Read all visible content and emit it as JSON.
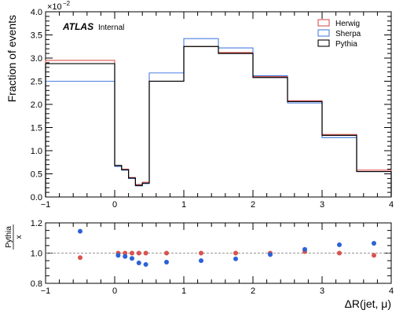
{
  "chart_data": [
    {
      "type": "line",
      "title": "",
      "xlabel": "",
      "ylabel": "Fraction of events",
      "y_exponent_label": "×10",
      "y_exponent_power": "−2",
      "ylim": [
        0.0,
        4.0
      ],
      "xlim": [
        -1,
        4
      ],
      "yticks": [
        "0.0",
        "0.5",
        "1.0",
        "1.5",
        "2.0",
        "2.5",
        "3.0",
        "3.5",
        "4.0"
      ],
      "xticks": [
        "−1",
        "0",
        "1",
        "2",
        "3",
        "4"
      ],
      "experiment_label": "ATLAS",
      "experiment_sub_label": "Internal",
      "legend_position": "top-right",
      "bin_edges": [
        -1,
        0,
        0.1,
        0.2,
        0.3,
        0.4,
        0.5,
        1.0,
        1.5,
        2.0,
        2.5,
        3.0,
        3.5,
        4.0
      ],
      "series": [
        {
          "name": "Herwig",
          "color": "#d9534f",
          "values": [
            2.95,
            0.68,
            0.6,
            0.42,
            0.27,
            0.32,
            2.5,
            3.25,
            3.12,
            2.6,
            2.08,
            1.35,
            0.58
          ]
        },
        {
          "name": "Sherpa",
          "color": "#4a7fe0",
          "values": [
            2.5,
            0.66,
            0.58,
            0.4,
            0.24,
            0.29,
            2.68,
            3.42,
            3.22,
            2.62,
            2.03,
            1.28,
            0.55
          ]
        },
        {
          "name": "Pythia",
          "color": "#000000",
          "values": [
            2.88,
            0.68,
            0.59,
            0.41,
            0.25,
            0.3,
            2.5,
            3.25,
            3.1,
            2.58,
            2.06,
            1.33,
            0.55
          ]
        }
      ]
    },
    {
      "type": "scatter",
      "title": "",
      "xlabel": "ΔR(jet, μ)",
      "ylabel_numerator": "Pythia",
      "ylabel_denominator": "x",
      "ylim": [
        0.8,
        1.2
      ],
      "xlim": [
        -1,
        4
      ],
      "yticks": [
        "0.8",
        "1.0",
        "1.2"
      ],
      "xticks": [
        "−1",
        "0",
        "1",
        "2",
        "3",
        "4"
      ],
      "reference_line": 1.0,
      "x": [
        -0.5,
        0.05,
        0.15,
        0.25,
        0.35,
        0.45,
        0.75,
        1.25,
        1.75,
        2.25,
        2.75,
        3.25,
        3.75
      ],
      "series": [
        {
          "color": "#d9534f",
          "values": [
            0.97,
            1.0,
            1.0,
            1.0,
            1.0,
            1.0,
            1.0,
            1.0,
            1.0,
            1.0,
            1.01,
            1.0,
            0.985
          ]
        },
        {
          "color": "#2a62d8",
          "values": [
            1.145,
            0.985,
            0.978,
            0.965,
            0.935,
            0.925,
            0.94,
            0.95,
            0.962,
            0.99,
            1.025,
            1.055,
            1.065
          ]
        }
      ]
    }
  ]
}
